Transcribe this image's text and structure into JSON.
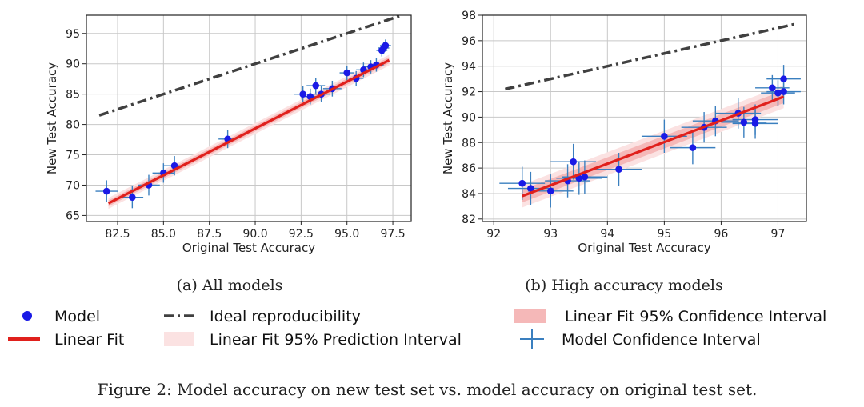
{
  "figure": {
    "caption": "Figure 2: Model accuracy on new test set vs. model accuracy on original test set."
  },
  "legend": {
    "model": "Model",
    "linear_fit": "Linear Fit",
    "ideal": "Ideal reproducibility",
    "prediction_interval": "Linear Fit 95% Prediction Interval",
    "confidence_interval": "Linear Fit 95% Confidence Interval",
    "model_ci": "Model Confidence Interval"
  },
  "colors": {
    "model": "#1a1ae6",
    "fit": "#e0201c",
    "band": "#f7c5c5",
    "ideal": "#404040",
    "error_bar": "#3a7fbf",
    "grid": "#c8c8c8"
  },
  "chart_data": [
    {
      "type": "scatter",
      "subtitle": "(a) All models",
      "xlabel": "Original Test Accuracy",
      "ylabel": "New Test Accuracy",
      "xlim": [
        80.8,
        98.5
      ],
      "ylim": [
        64.0,
        98.0
      ],
      "xticks": [
        82.5,
        85.0,
        87.5,
        90.0,
        92.5,
        95.0,
        97.5
      ],
      "xtick_labels": [
        "82.5",
        "85.0",
        "87.5",
        "90.0",
        "92.5",
        "95.0",
        "97.5"
      ],
      "yticks": [
        65,
        70,
        75,
        80,
        85,
        90,
        95
      ],
      "ytick_labels": [
        "65",
        "70",
        "75",
        "80",
        "85",
        "90",
        "95"
      ],
      "grid": true,
      "ideal_line": {
        "x": [
          81.5,
          98.0
        ],
        "y": [
          81.5,
          98.0
        ]
      },
      "fit_line": {
        "x": [
          82.0,
          97.3
        ],
        "y": [
          67.0,
          90.6
        ]
      },
      "prediction_interval_halfwidth": 0.9,
      "confidence_interval_halfwidth": 0.5,
      "points": [
        {
          "x": 81.9,
          "y": 69.0,
          "xerr": 0.6,
          "yerr": 1.8
        },
        {
          "x": 83.3,
          "y": 68.0,
          "xerr": 0.6,
          "yerr": 1.8
        },
        {
          "x": 84.2,
          "y": 70.0,
          "xerr": 0.6,
          "yerr": 1.7
        },
        {
          "x": 85.0,
          "y": 72.0,
          "xerr": 0.6,
          "yerr": 1.6
        },
        {
          "x": 85.6,
          "y": 73.2,
          "xerr": 0.6,
          "yerr": 1.6
        },
        {
          "x": 88.5,
          "y": 77.6,
          "xerr": 0.5,
          "yerr": 1.5
        },
        {
          "x": 92.6,
          "y": 85.0,
          "xerr": 0.5,
          "yerr": 1.3
        },
        {
          "x": 93.0,
          "y": 84.6,
          "xerr": 0.5,
          "yerr": 1.3
        },
        {
          "x": 93.3,
          "y": 86.4,
          "xerr": 0.5,
          "yerr": 1.3
        },
        {
          "x": 93.6,
          "y": 85.0,
          "xerr": 0.5,
          "yerr": 1.3
        },
        {
          "x": 94.2,
          "y": 85.9,
          "xerr": 0.5,
          "yerr": 1.3
        },
        {
          "x": 95.0,
          "y": 88.5,
          "xerr": 0.4,
          "yerr": 1.2
        },
        {
          "x": 95.5,
          "y": 87.6,
          "xerr": 0.4,
          "yerr": 1.2
        },
        {
          "x": 95.9,
          "y": 89.0,
          "xerr": 0.4,
          "yerr": 1.2
        },
        {
          "x": 96.3,
          "y": 89.5,
          "xerr": 0.4,
          "yerr": 1.1
        },
        {
          "x": 96.6,
          "y": 89.8,
          "xerr": 0.4,
          "yerr": 1.1
        },
        {
          "x": 96.9,
          "y": 92.2,
          "xerr": 0.3,
          "yerr": 1.0
        },
        {
          "x": 97.0,
          "y": 92.6,
          "xerr": 0.3,
          "yerr": 1.0
        },
        {
          "x": 97.1,
          "y": 93.0,
          "xerr": 0.3,
          "yerr": 1.0
        }
      ]
    },
    {
      "type": "scatter",
      "subtitle": "(b) High accuracy models",
      "xlabel": "Original Test Accuracy",
      "ylabel": "New Test Accuracy",
      "xlim": [
        91.8,
        97.5
      ],
      "ylim": [
        81.8,
        98.0
      ],
      "xticks": [
        92,
        93,
        94,
        95,
        96,
        97
      ],
      "xtick_labels": [
        "92",
        "93",
        "94",
        "95",
        "96",
        "97"
      ],
      "yticks": [
        82,
        84,
        86,
        88,
        90,
        92,
        94,
        96,
        98
      ],
      "ytick_labels": [
        "82",
        "84",
        "86",
        "88",
        "90",
        "92",
        "94",
        "96",
        "98"
      ],
      "grid": true,
      "ideal_line": {
        "x": [
          92.2,
          97.3
        ],
        "y": [
          92.2,
          97.3
        ]
      },
      "fit_line": {
        "x": [
          92.5,
          97.1
        ],
        "y": [
          83.8,
          91.6
        ]
      },
      "prediction_interval_halfwidth": 0.9,
      "confidence_interval_halfwidth": 0.5,
      "points": [
        {
          "x": 92.5,
          "y": 84.8,
          "xerr": 0.4,
          "yerr": 1.3
        },
        {
          "x": 92.65,
          "y": 84.4,
          "xerr": 0.4,
          "yerr": 1.3
        },
        {
          "x": 93.0,
          "y": 84.2,
          "xerr": 0.4,
          "yerr": 1.3
        },
        {
          "x": 93.3,
          "y": 85.0,
          "xerr": 0.4,
          "yerr": 1.3
        },
        {
          "x": 93.4,
          "y": 86.5,
          "xerr": 0.4,
          "yerr": 1.4
        },
        {
          "x": 93.5,
          "y": 85.2,
          "xerr": 0.4,
          "yerr": 1.3
        },
        {
          "x": 93.6,
          "y": 85.3,
          "xerr": 0.4,
          "yerr": 1.3
        },
        {
          "x": 94.2,
          "y": 85.9,
          "xerr": 0.4,
          "yerr": 1.3
        },
        {
          "x": 95.0,
          "y": 88.5,
          "xerr": 0.4,
          "yerr": 1.3
        },
        {
          "x": 95.5,
          "y": 87.6,
          "xerr": 0.4,
          "yerr": 1.3
        },
        {
          "x": 95.7,
          "y": 89.2,
          "xerr": 0.4,
          "yerr": 1.2
        },
        {
          "x": 95.9,
          "y": 89.7,
          "xerr": 0.4,
          "yerr": 1.2
        },
        {
          "x": 96.3,
          "y": 90.3,
          "xerr": 0.4,
          "yerr": 1.2
        },
        {
          "x": 96.4,
          "y": 89.6,
          "xerr": 0.4,
          "yerr": 1.2
        },
        {
          "x": 96.6,
          "y": 89.8,
          "xerr": 0.4,
          "yerr": 1.2
        },
        {
          "x": 96.6,
          "y": 89.5,
          "xerr": 0.4,
          "yerr": 1.2
        },
        {
          "x": 96.9,
          "y": 92.3,
          "xerr": 0.3,
          "yerr": 1.0
        },
        {
          "x": 97.0,
          "y": 91.9,
          "xerr": 0.3,
          "yerr": 1.0
        },
        {
          "x": 97.1,
          "y": 92.0,
          "xerr": 0.3,
          "yerr": 1.0
        },
        {
          "x": 97.1,
          "y": 93.0,
          "xerr": 0.3,
          "yerr": 1.1
        }
      ]
    }
  ]
}
